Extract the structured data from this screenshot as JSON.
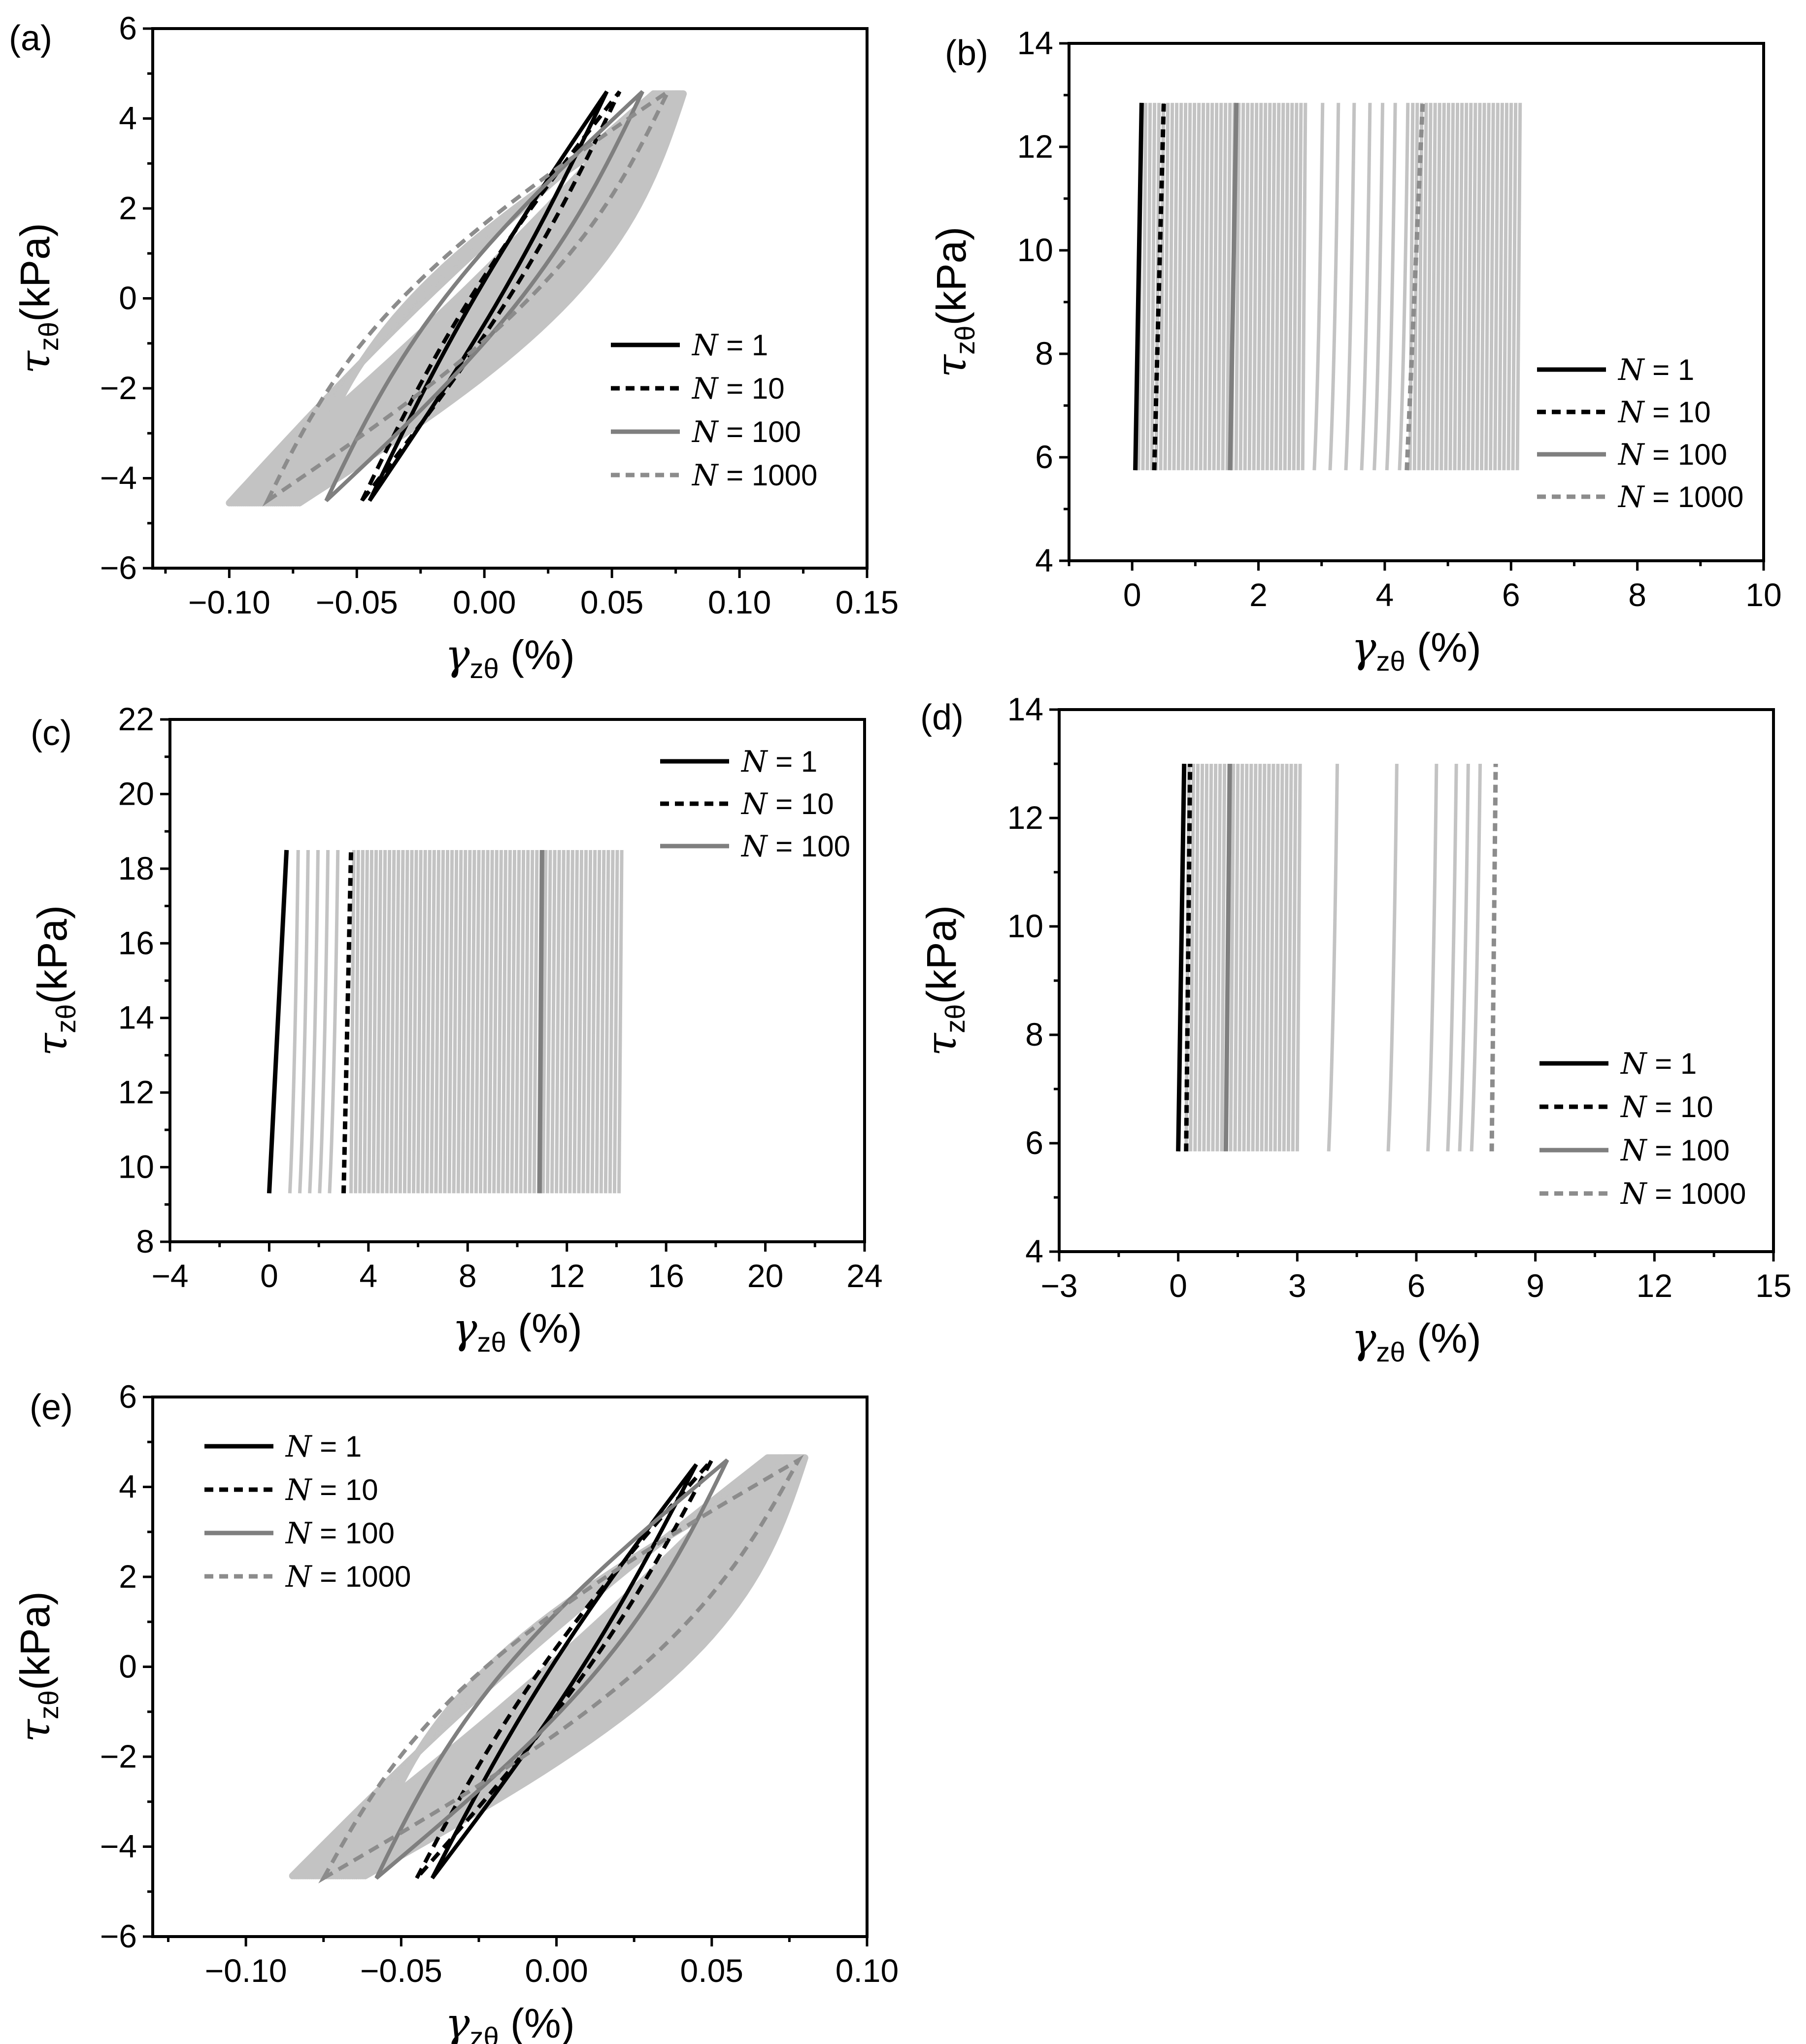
{
  "figure": {
    "legend_prefix": "N",
    "legend_sep": " = ",
    "colors": {
      "n1": "#000000",
      "n10": "#000000",
      "n100": "#7f7f7f",
      "n1000": "#8c8c8c",
      "fill": "#c3c3c3",
      "axes": "#000000"
    }
  },
  "chart_data": [
    {
      "id": "a",
      "panel_label": "(a)",
      "type": "line",
      "subtype": "hysteresis",
      "title": "",
      "xlabel": {
        "sym": "γ",
        "sub": "zθ",
        "unit": " (%)"
      },
      "ylabel": {
        "sym": "τ",
        "sub": "zθ",
        "unit": "(kPa)"
      },
      "xlim": [
        -0.13,
        0.15
      ],
      "ylim": [
        -6,
        6
      ],
      "xticks": [
        -0.1,
        -0.05,
        0.0,
        0.05,
        0.1,
        0.15
      ],
      "xtick_labels": [
        "−0.10",
        "−0.05",
        "0.00",
        "0.05",
        "0.10",
        "0.15"
      ],
      "yticks": [
        -6,
        -4,
        -2,
        0,
        2,
        4,
        6
      ],
      "ytick_labels": [
        "−6",
        "−4",
        "−2",
        "0",
        "2",
        "4",
        "6"
      ],
      "legend": [
        "N = 1",
        "N = 10",
        "N = 100",
        "N = 1000"
      ],
      "legend_values": [
        "1",
        "10",
        "100",
        "1000"
      ],
      "legend_position": "center-right",
      "series": [
        {
          "name": "N = 1",
          "style": "solid",
          "color": "#000000",
          "loop": {
            "xmin": -0.045,
            "xmax": 0.048,
            "ymin": -4.5,
            "ymax": 4.6,
            "width": 0.01
          }
        },
        {
          "name": "N = 10",
          "style": "dashed",
          "color": "#000000",
          "loop": {
            "xmin": -0.048,
            "xmax": 0.053,
            "ymin": -4.5,
            "ymax": 4.6,
            "width": 0.015
          }
        },
        {
          "name": "N = 100",
          "style": "solid",
          "color": "#7f7f7f",
          "loop": {
            "xmin": -0.062,
            "xmax": 0.062,
            "ymin": -4.5,
            "ymax": 4.6,
            "width": 0.03
          }
        },
        {
          "name": "N = 1000",
          "style": "dashed",
          "color": "#8c8c8c",
          "loop": {
            "xmin": -0.085,
            "xmax": 0.072,
            "ymin": -4.5,
            "ymax": 4.6,
            "width": 0.05
          }
        }
      ],
      "fill_band": {
        "xmin": -0.1,
        "xmax": 0.078,
        "ymin": -4.6,
        "ymax": 4.6
      }
    },
    {
      "id": "b",
      "panel_label": "(b)",
      "type": "line",
      "subtype": "ratcheting",
      "title": "",
      "xlabel": {
        "sym": "γ",
        "sub": "zθ",
        "unit": " (%)"
      },
      "ylabel": {
        "sym": "τ",
        "sub": "zθ",
        "unit": "(kPa)"
      },
      "xlim": [
        -1,
        10
      ],
      "ylim": [
        4,
        14
      ],
      "xticks": [
        0,
        2,
        4,
        6,
        8,
        10
      ],
      "xtick_labels": [
        "0",
        "2",
        "4",
        "6",
        "8",
        "10"
      ],
      "yticks": [
        4,
        6,
        8,
        10,
        12,
        14
      ],
      "ytick_labels": [
        "4",
        "6",
        "8",
        "10",
        "12",
        "14"
      ],
      "legend": [
        "N = 1",
        "N = 10",
        "N = 100",
        "N = 1000"
      ],
      "legend_values": [
        "1",
        "10",
        "100",
        "1000"
      ],
      "legend_position": "lower-right",
      "tau_min": 5.75,
      "tau_max": 12.85,
      "series": [
        {
          "name": "N = 1",
          "style": "solid",
          "color": "#000000",
          "x_at_min": 0.05,
          "x_at_max": 0.15
        },
        {
          "name": "N = 10",
          "style": "dashed",
          "color": "#000000",
          "x_at_min": 0.35,
          "x_at_max": 0.5
        },
        {
          "name": "N = 100",
          "style": "solid",
          "color": "#7f7f7f",
          "x_at_min": 1.55,
          "x_at_max": 1.65
        },
        {
          "name": "N = 1000",
          "style": "dashed",
          "color": "#8c8c8c",
          "x_at_min": 4.35,
          "x_at_max": 4.6
        }
      ],
      "fill_bands": [
        [
          0.1,
          2.7
        ],
        [
          4.4,
          6.1
        ]
      ],
      "gap_lines": [
        2.95,
        3.2,
        3.45,
        3.7,
        3.9,
        4.1,
        4.3
      ]
    },
    {
      "id": "c",
      "panel_label": "(c)",
      "type": "line",
      "subtype": "ratcheting",
      "title": "",
      "xlabel": {
        "sym": "γ",
        "sub": "zθ",
        "unit": " (%)"
      },
      "ylabel": {
        "sym": "τ",
        "sub": "zθ",
        "unit": "(kPa)"
      },
      "xlim": [
        -4,
        24
      ],
      "ylim": [
        8,
        22
      ],
      "xticks": [
        -4,
        0,
        4,
        8,
        12,
        16,
        20,
        24
      ],
      "xtick_labels": [
        "−4",
        "0",
        "4",
        "8",
        "12",
        "16",
        "20",
        "24"
      ],
      "yticks": [
        8,
        10,
        12,
        14,
        16,
        18,
        20,
        22
      ],
      "ytick_labels": [
        "8",
        "10",
        "12",
        "14",
        "16",
        "18",
        "20",
        "22"
      ],
      "legend": [
        "N = 1",
        "N = 10",
        "N = 100"
      ],
      "legend_values": [
        "1",
        "10",
        "100"
      ],
      "legend_position": "top-right",
      "tau_min": 9.3,
      "tau_max": 18.5,
      "series": [
        {
          "name": "N = 1",
          "style": "solid",
          "color": "#000000",
          "x_at_min": 0.0,
          "x_at_max": 0.7
        },
        {
          "name": "N = 10",
          "style": "dashed",
          "color": "#000000",
          "x_at_min": 3.0,
          "x_at_max": 3.3
        },
        {
          "name": "N = 100",
          "style": "solid",
          "color": "#7f7f7f",
          "x_at_min": 10.9,
          "x_at_max": 11.0
        }
      ],
      "fill_bands": [
        [
          3.3,
          14.1
        ]
      ],
      "gap_lines": [
        1.0,
        1.4,
        1.8,
        2.2,
        2.6
      ]
    },
    {
      "id": "d",
      "panel_label": "(d)",
      "type": "line",
      "subtype": "ratcheting",
      "title": "",
      "xlabel": {
        "sym": "γ",
        "sub": "zθ",
        "unit": " (%)"
      },
      "ylabel": {
        "sym": "τ",
        "sub": "zθ",
        "unit": "(kPa)"
      },
      "xlim": [
        -3,
        15
      ],
      "ylim": [
        4,
        14
      ],
      "xticks": [
        -3,
        0,
        3,
        6,
        9,
        12,
        15
      ],
      "xtick_labels": [
        "−3",
        "0",
        "3",
        "6",
        "9",
        "12",
        "15"
      ],
      "yticks": [
        4,
        6,
        8,
        10,
        12,
        14
      ],
      "ytick_labels": [
        "4",
        "6",
        "8",
        "10",
        "12",
        "14"
      ],
      "legend": [
        "N = 1",
        "N = 10",
        "N = 100",
        "N = 1000"
      ],
      "legend_values": [
        "1",
        "10",
        "100",
        "1000"
      ],
      "legend_position": "lower-right",
      "tau_min": 5.85,
      "tau_max": 13.0,
      "series": [
        {
          "name": "N = 1",
          "style": "solid",
          "color": "#000000",
          "x_at_min": 0.0,
          "x_at_max": 0.15
        },
        {
          "name": "N = 10",
          "style": "dashed",
          "color": "#000000",
          "x_at_min": 0.2,
          "x_at_max": 0.3
        },
        {
          "name": "N = 100",
          "style": "solid",
          "color": "#7f7f7f",
          "x_at_min": 1.2,
          "x_at_max": 1.3
        },
        {
          "name": "N = 1000",
          "style": "dashed",
          "color": "#8c8c8c",
          "x_at_min": 7.9,
          "x_at_max": 8.0
        }
      ],
      "fill_bands": [
        [
          0.2,
          3.0
        ]
      ],
      "gap_lines": [
        3.9,
        5.4,
        6.4,
        6.9,
        7.2,
        7.5
      ]
    },
    {
      "id": "e",
      "panel_label": "(e)",
      "type": "line",
      "subtype": "hysteresis",
      "title": "",
      "xlabel": {
        "sym": "γ",
        "sub": "zθ",
        "unit": " (%)"
      },
      "ylabel": {
        "sym": "τ",
        "sub": "zθ",
        "unit": "(kPa)"
      },
      "xlim": [
        -0.13,
        0.1
      ],
      "ylim": [
        -6,
        6
      ],
      "xticks": [
        -0.1,
        -0.05,
        0.0,
        0.05,
        0.1
      ],
      "xtick_labels": [
        "−0.10",
        "−0.05",
        "0.00",
        "0.05",
        "0.10"
      ],
      "yticks": [
        -6,
        -4,
        -2,
        0,
        2,
        4,
        6
      ],
      "ytick_labels": [
        "−6",
        "−4",
        "−2",
        "0",
        "2",
        "4",
        "6"
      ],
      "legend": [
        "N = 1",
        "N = 10",
        "N = 100",
        "N = 1000"
      ],
      "legend_values": [
        "1",
        "10",
        "100",
        "1000"
      ],
      "legend_position": "top-left",
      "series": [
        {
          "name": "N = 1",
          "style": "solid",
          "color": "#000000",
          "loop": {
            "xmin": -0.04,
            "xmax": 0.045,
            "ymin": -4.7,
            "ymax": 4.5,
            "width": 0.01
          }
        },
        {
          "name": "N = 10",
          "style": "dashed",
          "color": "#000000",
          "loop": {
            "xmin": -0.045,
            "xmax": 0.05,
            "ymin": -4.7,
            "ymax": 4.6,
            "width": 0.015
          }
        },
        {
          "name": "N = 100",
          "style": "solid",
          "color": "#7f7f7f",
          "loop": {
            "xmin": -0.058,
            "xmax": 0.055,
            "ymin": -4.7,
            "ymax": 4.6,
            "width": 0.03
          }
        },
        {
          "name": "N = 1000",
          "style": "dashed",
          "color": "#8c8c8c",
          "loop": {
            "xmin": -0.075,
            "xmax": 0.078,
            "ymin": -4.7,
            "ymax": 4.6,
            "width": 0.05
          }
        }
      ],
      "fill_band": {
        "xmin": -0.085,
        "xmax": 0.08,
        "ymin": -4.7,
        "ymax": 4.7
      }
    }
  ]
}
